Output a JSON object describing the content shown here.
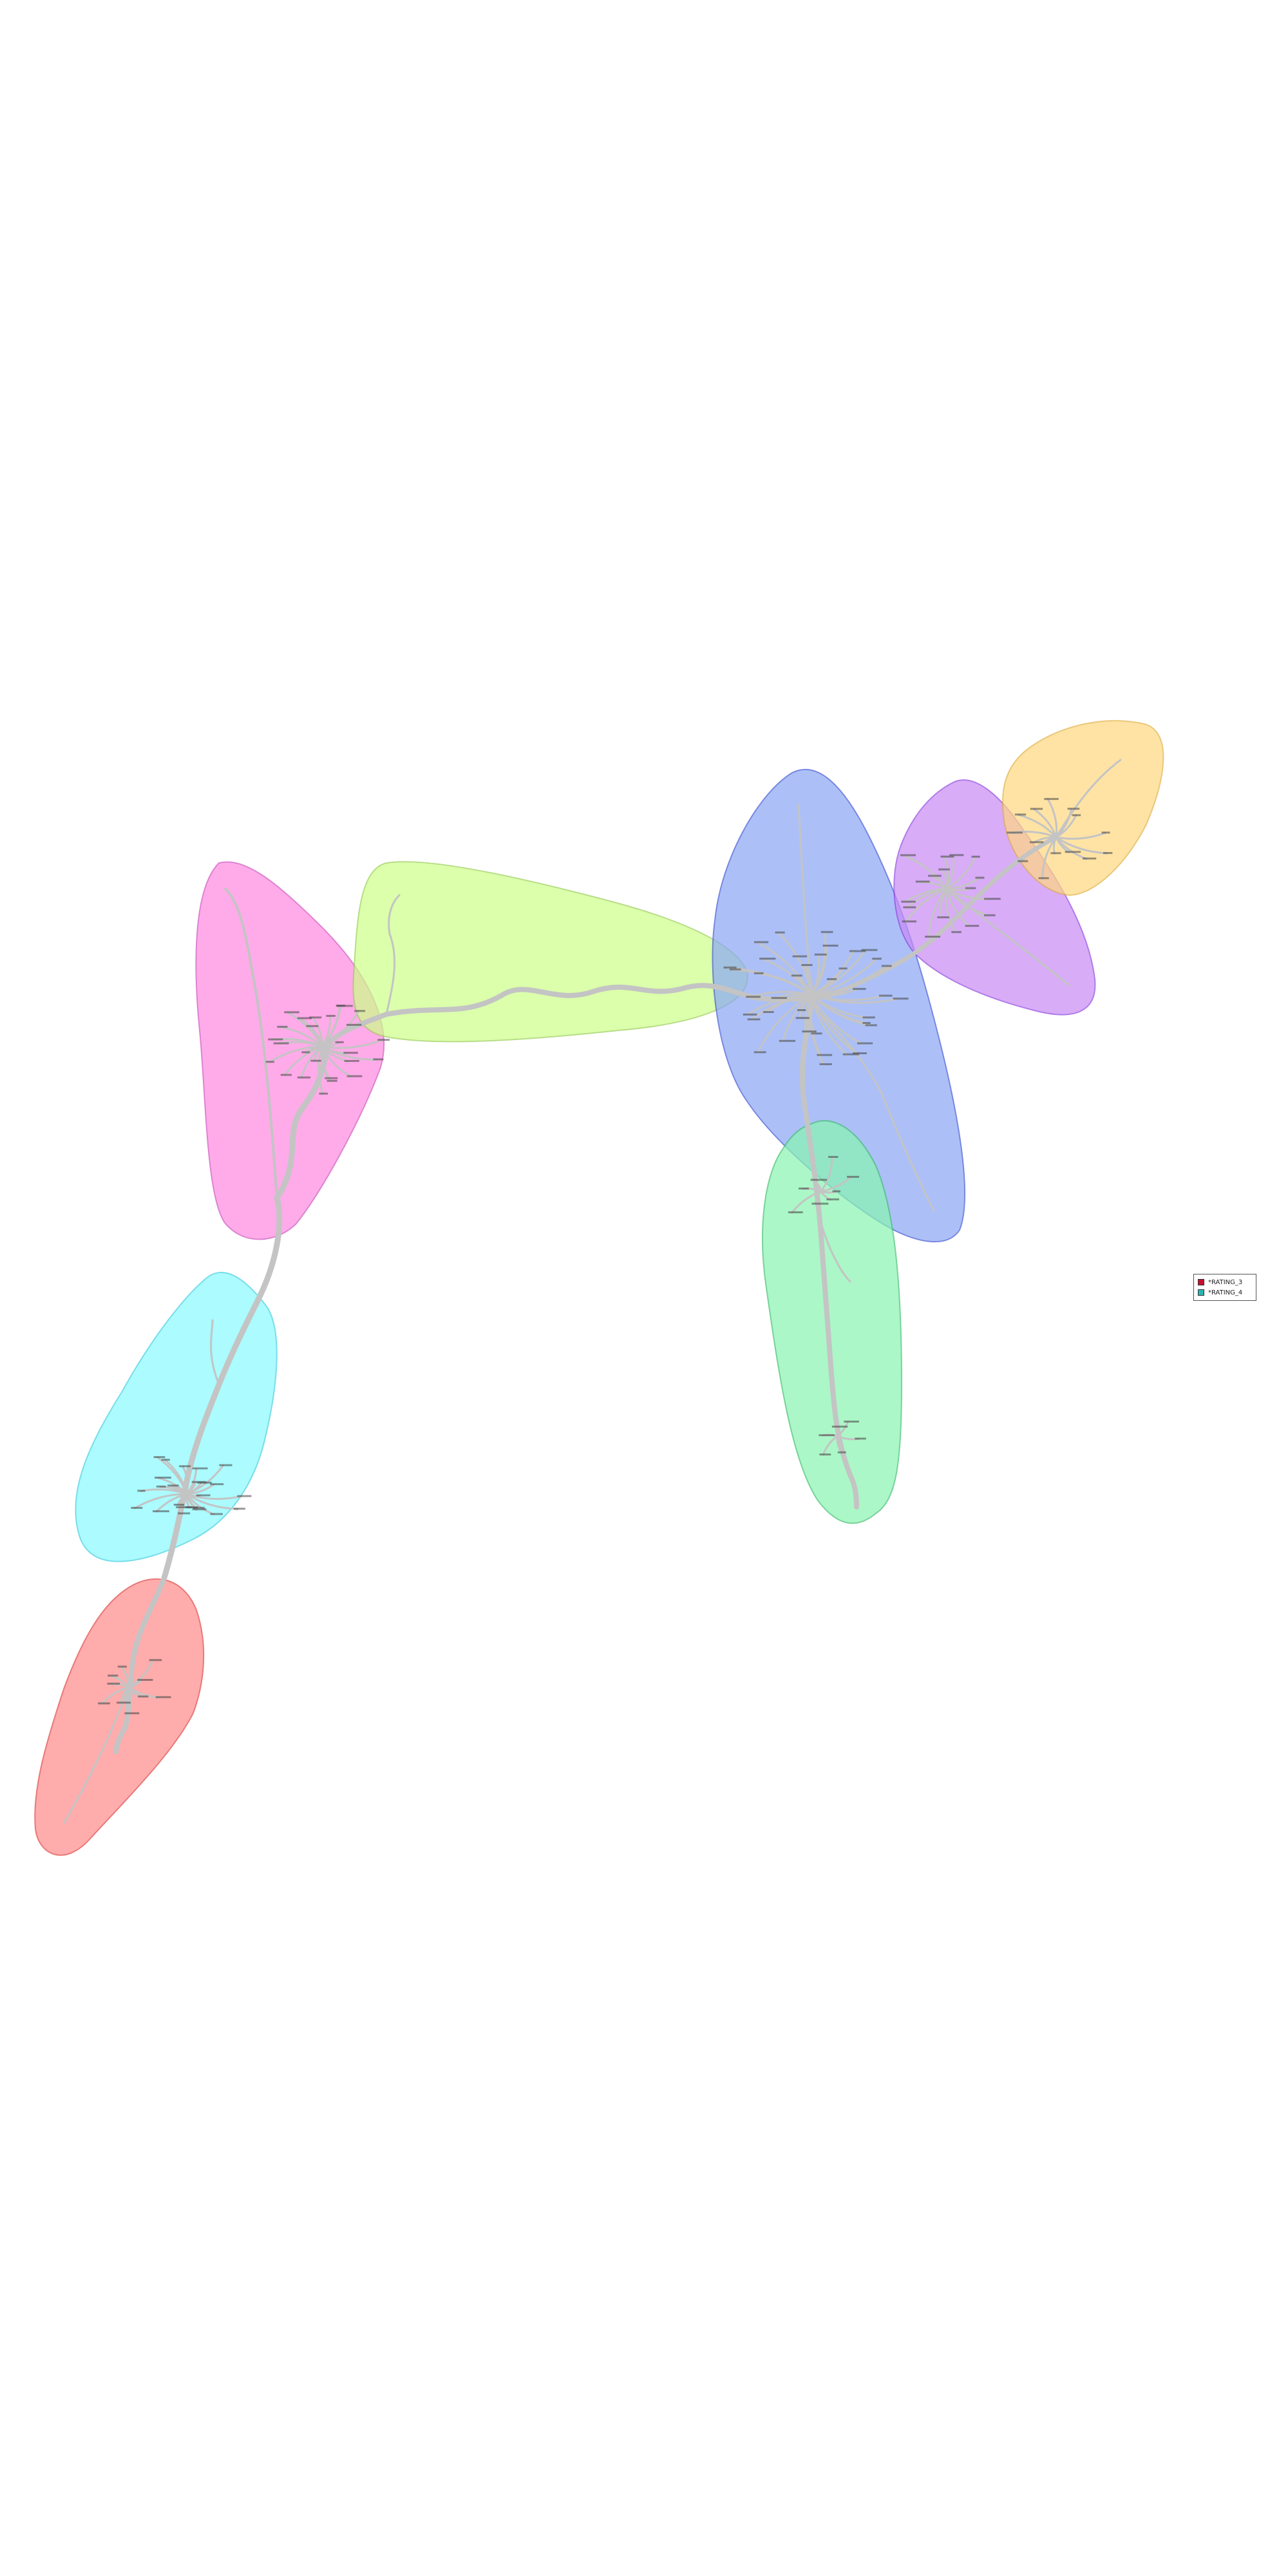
{
  "colors": {
    "edge": "#c4c4c4",
    "legend_rating_3": "#c8102e",
    "legend_rating_4": "#2ab5b5"
  },
  "legend": {
    "items": [
      {
        "label": "*RATING_3",
        "color": "#c8102e"
      },
      {
        "label": "*RATING_4",
        "color": "#2ab5b5"
      }
    ]
  },
  "clusters": [
    {
      "name": "pink",
      "fill": "#ff88e0",
      "stroke": "#d050c0"
    },
    {
      "name": "lime",
      "fill": "#ccff88",
      "stroke": "#9bcf55"
    },
    {
      "name": "blue",
      "fill": "#8aa6f5",
      "stroke": "#4055d5"
    },
    {
      "name": "purple",
      "fill": "#c88af5",
      "stroke": "#9045e0"
    },
    {
      "name": "orange",
      "fill": "#ffd880",
      "stroke": "#e0b040"
    },
    {
      "name": "green",
      "fill": "#88f5b0",
      "stroke": "#40c070"
    },
    {
      "name": "cyan",
      "fill": "#88faff",
      "stroke": "#40d0e0"
    },
    {
      "name": "red",
      "fill": "#ff8a8a",
      "stroke": "#e04040"
    }
  ]
}
